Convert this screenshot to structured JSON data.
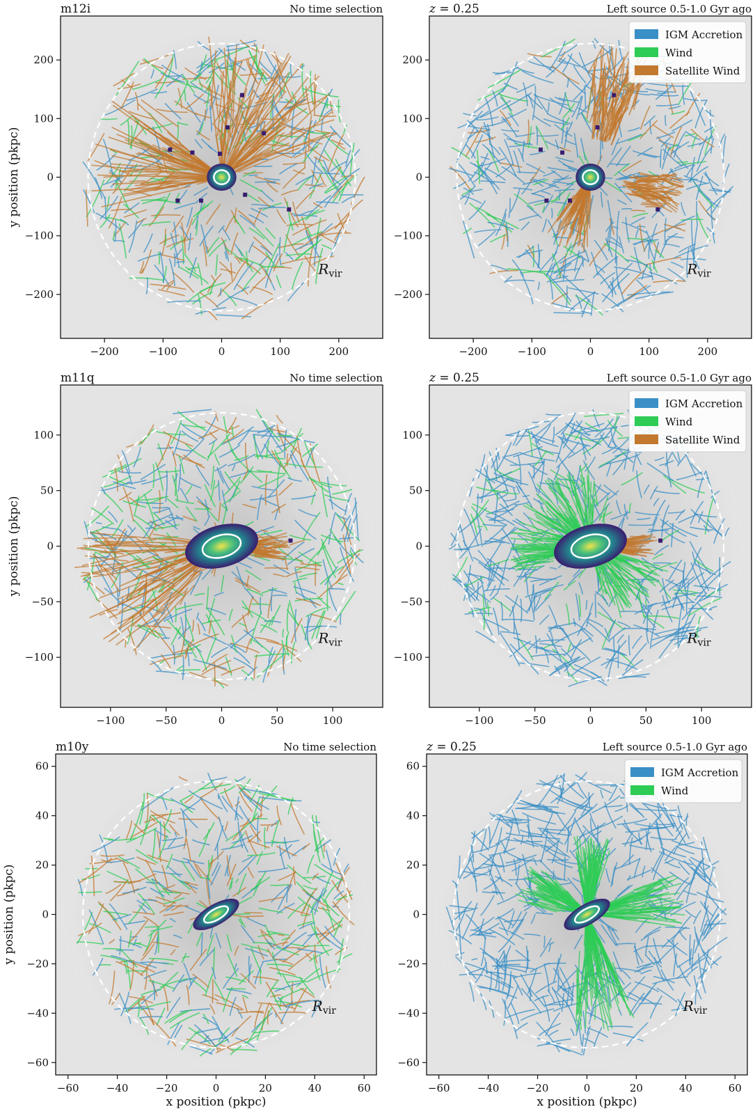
{
  "figure": {
    "ylabel": "y position (pkpc)",
    "xlabel": "x position (pkpc)",
    "rvir_label": "R",
    "rvir_sub": "vir",
    "colors": {
      "igm": "#3a8fc6",
      "wind": "#2ecc55",
      "sat": "#c2782e",
      "bg": "#e4e4e4",
      "dark": "#8c8c8c",
      "rvir": "#ffffff"
    }
  },
  "chart_data": [
    {
      "type": "scatter",
      "name": "m12i",
      "left_title": "m12i",
      "right_title": "No time selection",
      "xlim": [
        -275,
        275
      ],
      "ylim": [
        -275,
        275
      ],
      "xticks": [
        -200,
        -100,
        0,
        100,
        200
      ],
      "yticks": [
        -200,
        -100,
        0,
        100,
        200
      ],
      "rvir": 228,
      "galaxy": {
        "major": 12,
        "minor": 11,
        "angle": 0
      },
      "satellites": [
        [
          35,
          140
        ],
        [
          10,
          85
        ],
        [
          72,
          75
        ],
        [
          -88,
          47
        ],
        [
          -50,
          42
        ],
        [
          115,
          -55
        ],
        [
          -35,
          -40
        ],
        [
          -75,
          -40
        ],
        [
          40,
          -30
        ],
        [
          -3,
          40
        ]
      ],
      "mix": {
        "igm": 0.35,
        "wind": 0.3,
        "sat": 0.35
      },
      "legend": [],
      "bands": [
        {
          "kind": "sat",
          "angle": 165,
          "spread": 30,
          "r0": 25,
          "r1": 230
        },
        {
          "kind": "sat",
          "angle": 60,
          "spread": 40,
          "r0": 40,
          "r1": 240
        }
      ]
    },
    {
      "type": "scatter",
      "name": "m12i-z0.25",
      "left_title": "z = 0.25",
      "right_title": "Left source 0.5-1.0 Gyr ago",
      "xlim": [
        -275,
        275
      ],
      "ylim": [
        -275,
        275
      ],
      "xticks": [
        -200,
        -100,
        0,
        100,
        200
      ],
      "yticks": [
        -200,
        -100,
        0,
        100,
        200
      ],
      "rvir": 228,
      "galaxy": {
        "major": 12,
        "minor": 11,
        "angle": 0
      },
      "satellites": [
        [
          40,
          140
        ],
        [
          12,
          85
        ],
        [
          -85,
          47
        ],
        [
          -48,
          42
        ],
        [
          115,
          -55
        ],
        [
          -35,
          -40
        ],
        [
          -75,
          -40
        ]
      ],
      "mix": {
        "igm": 0.8,
        "wind": 0.12,
        "sat": 0.08
      },
      "legend": [
        "IGM Accretion",
        "Wind",
        "Satellite Wind"
      ],
      "bands": [
        {
          "kind": "sat",
          "angle": 75,
          "spread": 14,
          "r0": 110,
          "r1": 230
        },
        {
          "kind": "sat",
          "angle": -10,
          "spread": 14,
          "r0": 95,
          "r1": 160
        },
        {
          "kind": "sat",
          "angle": -110,
          "spread": 20,
          "r0": 20,
          "r1": 130
        }
      ]
    },
    {
      "type": "scatter",
      "name": "m11q",
      "left_title": "m11q",
      "right_title": "No time selection",
      "xlim": [
        -145,
        145
      ],
      "ylim": [
        -145,
        145
      ],
      "xticks": [
        -100,
        -50,
        0,
        50,
        100
      ],
      "yticks": [
        -100,
        -50,
        0,
        50,
        100
      ],
      "rvir": 120,
      "galaxy": {
        "major": 16,
        "minor": 9,
        "angle": 15
      },
      "satellites": [
        [
          62,
          5
        ]
      ],
      "mix": {
        "igm": 0.35,
        "wind": 0.35,
        "sat": 0.3
      },
      "legend": [],
      "bands": [
        {
          "kind": "sat",
          "angle": 200,
          "spread": 30,
          "r0": 15,
          "r1": 135
        },
        {
          "kind": "sat",
          "angle": 0,
          "spread": 12,
          "r0": 15,
          "r1": 62
        }
      ]
    },
    {
      "type": "scatter",
      "name": "m11q-z0.25",
      "left_title": "z = 0.25",
      "right_title": "Left source 0.5-1.0 Gyr ago",
      "xlim": [
        -145,
        145
      ],
      "ylim": [
        -145,
        145
      ],
      "xticks": [
        -100,
        -50,
        0,
        50,
        100
      ],
      "yticks": [
        -100,
        -50,
        0,
        50,
        100
      ],
      "rvir": 120,
      "galaxy": {
        "major": 16,
        "minor": 9,
        "angle": 15
      },
      "satellites": [
        [
          63,
          5
        ]
      ],
      "mix": {
        "igm": 0.85,
        "wind": 0.15,
        "sat": 0.0
      },
      "legend": [
        "IGM Accretion",
        "Wind",
        "Satellite Wind"
      ],
      "bands": [
        {
          "kind": "wind",
          "angle": 120,
          "spread": 35,
          "r0": 15,
          "r1": 75
        },
        {
          "kind": "wind",
          "angle": -45,
          "spread": 30,
          "r0": 15,
          "r1": 70
        },
        {
          "kind": "wind",
          "angle": 180,
          "spread": 20,
          "r0": 15,
          "r1": 75
        },
        {
          "kind": "sat",
          "angle": 0,
          "spread": 12,
          "r0": 10,
          "r1": 62
        }
      ]
    },
    {
      "type": "scatter",
      "name": "m10y",
      "left_title": "m10y",
      "right_title": "No time selection",
      "xlim": [
        -65,
        65
      ],
      "ylim": [
        -65,
        65
      ],
      "xticks": [
        -60,
        -40,
        -20,
        0,
        20,
        40,
        60
      ],
      "yticks": [
        -60,
        -40,
        -20,
        0,
        20,
        40,
        60
      ],
      "rvir": 54,
      "galaxy": {
        "major": 5,
        "minor": 2,
        "angle": 30
      },
      "satellites": [],
      "mix": {
        "igm": 0.33,
        "wind": 0.35,
        "sat": 0.32
      },
      "legend": [],
      "bands": []
    },
    {
      "type": "scatter",
      "name": "m10y-z0.25",
      "left_title": "z = 0.25",
      "right_title": "Left source 0.5-1.0 Gyr ago",
      "xlim": [
        -65,
        65
      ],
      "ylim": [
        -65,
        65
      ],
      "xticks": [
        -60,
        -40,
        -20,
        0,
        20,
        40,
        60
      ],
      "yticks": [
        -60,
        -40,
        -20,
        0,
        20,
        40,
        60
      ],
      "rvir": 54,
      "galaxy": {
        "major": 5,
        "minor": 2,
        "angle": 30
      },
      "satellites": [],
      "mix": {
        "igm": 1.0,
        "wind": 0.0,
        "sat": 0.0
      },
      "legend": [
        "IGM Accretion",
        "Wind"
      ],
      "bands": [
        {
          "kind": "wind",
          "angle": -80,
          "spread": 16,
          "r0": 5,
          "r1": 48
        },
        {
          "kind": "wind",
          "angle": 150,
          "spread": 20,
          "r0": 5,
          "r1": 30
        },
        {
          "kind": "wind",
          "angle": 10,
          "spread": 18,
          "r0": 5,
          "r1": 40
        },
        {
          "kind": "wind",
          "angle": 85,
          "spread": 15,
          "r0": 5,
          "r1": 32
        }
      ]
    }
  ]
}
